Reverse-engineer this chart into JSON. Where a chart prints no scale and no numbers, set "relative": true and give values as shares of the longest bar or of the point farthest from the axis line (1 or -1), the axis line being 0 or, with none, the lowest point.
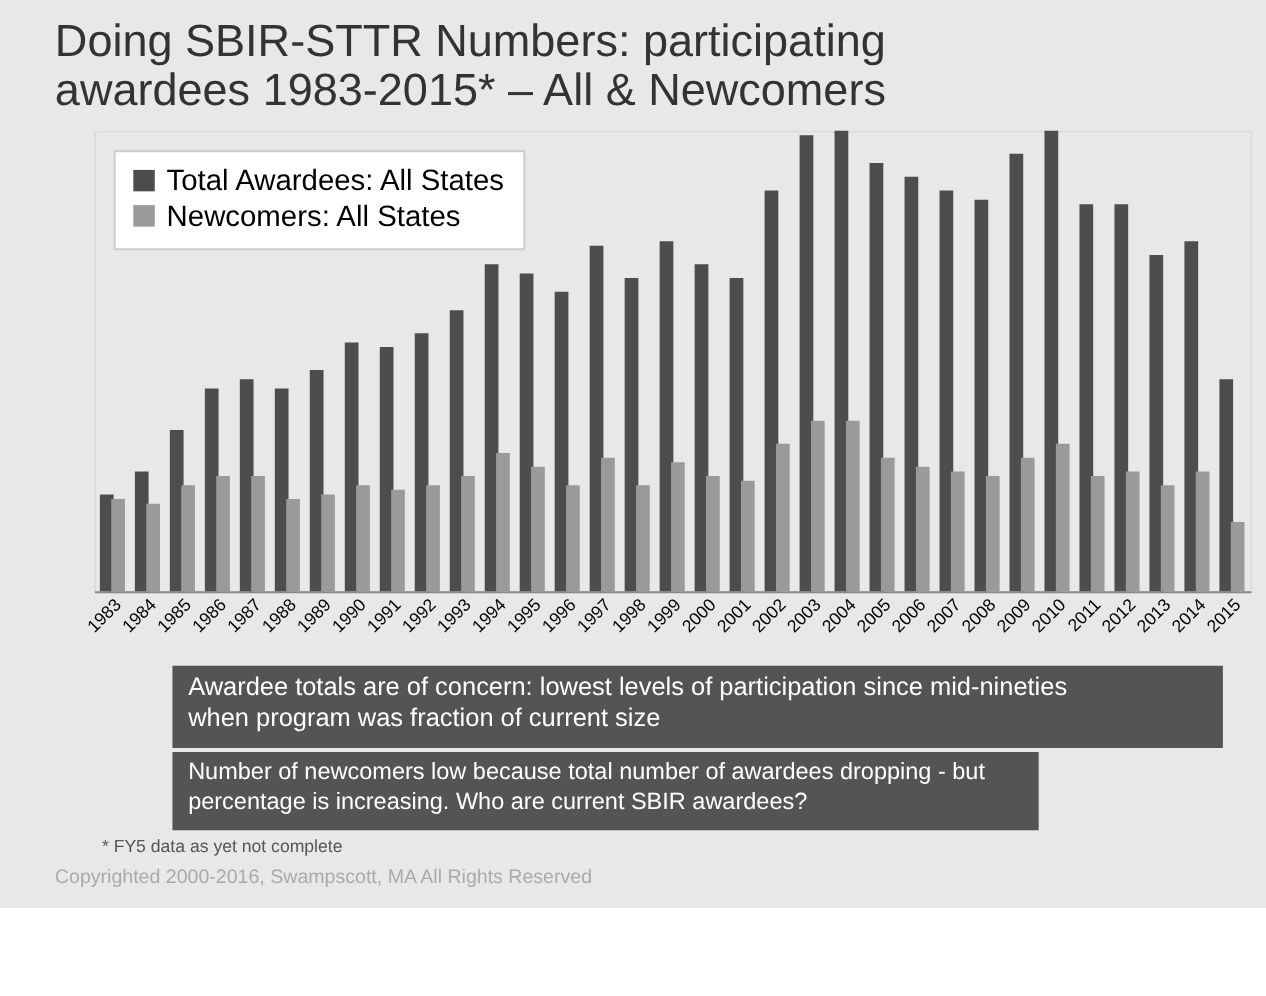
{
  "chart_data": {
    "type": "bar",
    "title": "Doing SBIR-STTR Numbers: participating awardees 1983-2015* – All & Newcomers",
    "relative": true,
    "legend": "top left",
    "categories": [
      "1983",
      "1984",
      "1985",
      "1986",
      "1987",
      "1988",
      "1989",
      "1990",
      "1991",
      "1992",
      "1993",
      "1994",
      "1995",
      "1996",
      "1997",
      "1998",
      "1999",
      "2000",
      "2001",
      "2002",
      "2003",
      "2004",
      "2005",
      "2006",
      "2007",
      "2008",
      "2009",
      "2010",
      "2011",
      "2012",
      "2013",
      "2014",
      "2015"
    ],
    "series": [
      {
        "name": "Total Awardees: All States",
        "color": "#4d4d4d",
        "values": [
          0.21,
          0.26,
          0.35,
          0.44,
          0.46,
          0.44,
          0.48,
          0.54,
          0.53,
          0.56,
          0.61,
          0.71,
          0.69,
          0.65,
          0.75,
          0.68,
          0.76,
          0.71,
          0.68,
          0.87,
          0.99,
          1.0,
          0.93,
          0.9,
          0.87,
          0.85,
          0.95,
          1.0,
          0.84,
          0.84,
          0.73,
          0.76,
          0.46
        ]
      },
      {
        "name": "Newcomers: All States",
        "color": "#9a9a9a",
        "values": [
          0.2,
          0.19,
          0.23,
          0.25,
          0.25,
          0.2,
          0.21,
          0.23,
          0.22,
          0.23,
          0.25,
          0.3,
          0.27,
          0.23,
          0.29,
          0.23,
          0.28,
          0.25,
          0.24,
          0.32,
          0.37,
          0.37,
          0.29,
          0.27,
          0.26,
          0.25,
          0.29,
          0.32,
          0.25,
          0.26,
          0.23,
          0.26,
          0.15
        ]
      }
    ],
    "annotations": [
      "Awardee totals are of concern: lowest levels of participation since mid-nineties when program was fraction of current size",
      "Number of newcomers low because total number of awardees dropping - but percentage is increasing. Who are current SBIR awardees?",
      "* FY5 data as yet not complete",
      "Copyrighted 2000-2016, Swampscott, MA   All Rights Reserved"
    ]
  }
}
